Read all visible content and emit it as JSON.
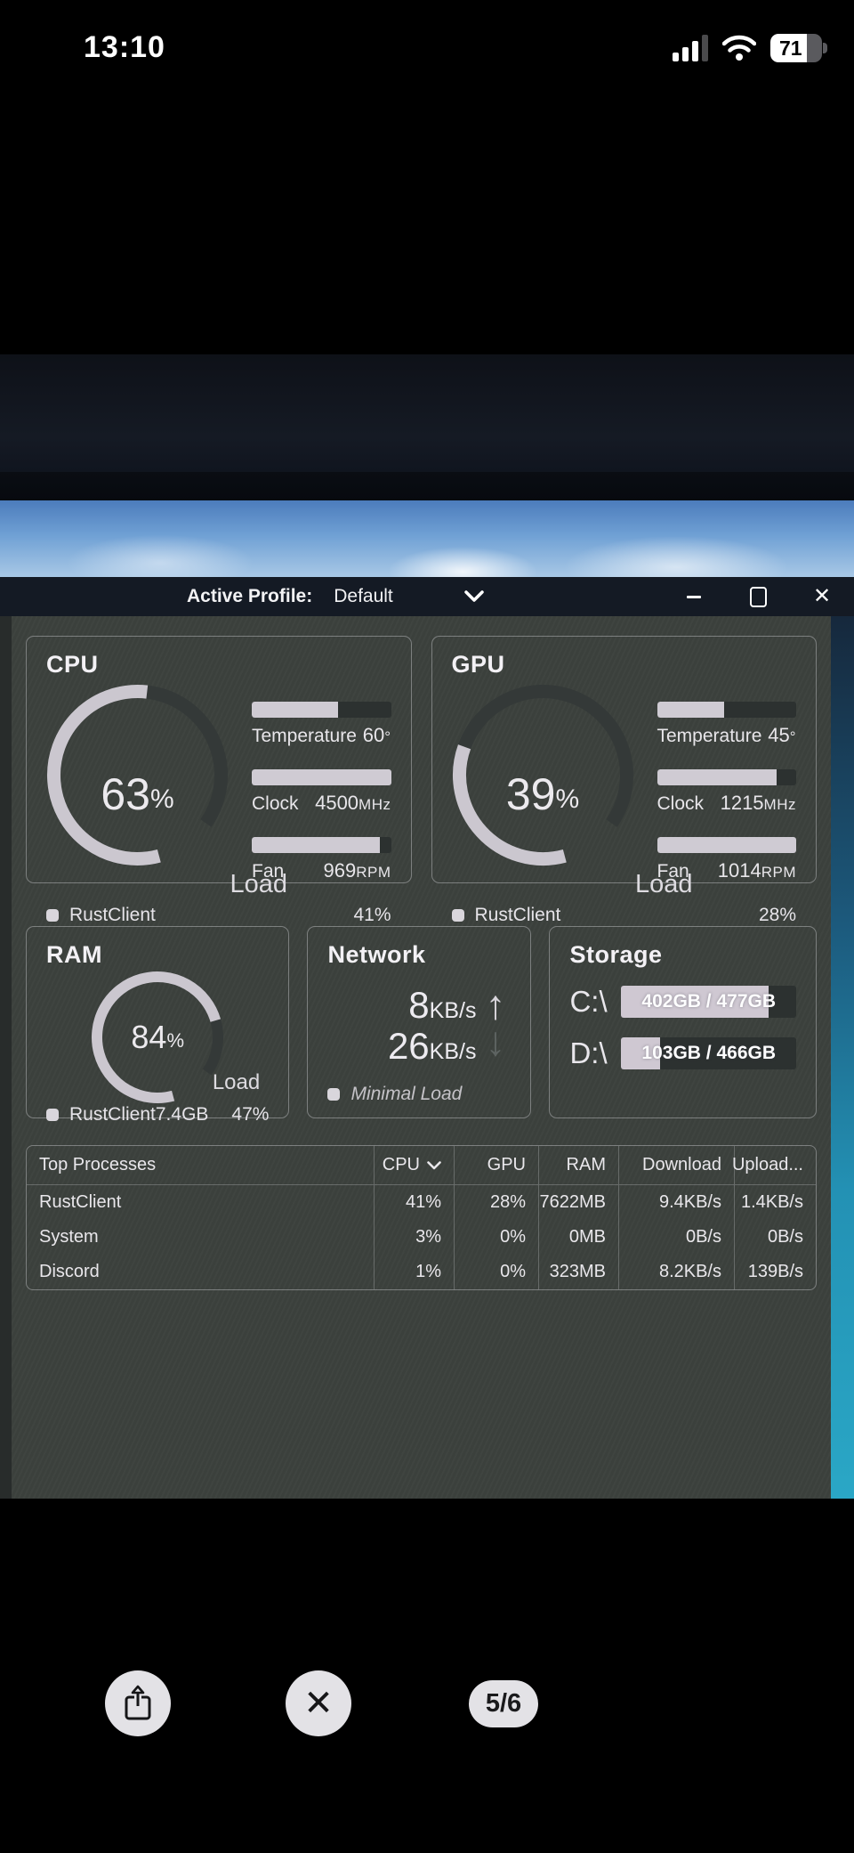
{
  "status_bar": {
    "time": "13:10",
    "battery_percent": "71",
    "battery_fill": 0.71
  },
  "window": {
    "titlebar": {
      "label": "Active Profile:",
      "value": "Default"
    },
    "controls": {
      "minimize": "minimize",
      "maximize": "maximize",
      "close": "close"
    },
    "panels": {
      "cpu": {
        "title": "CPU",
        "load_pct": 63,
        "load_num": "63",
        "load_unit": "%",
        "load_label": "Load",
        "bars": [
          {
            "label": "Temperature",
            "num": "60",
            "unit": "°",
            "fill": 0.62
          },
          {
            "label": "Clock",
            "num": "4500",
            "unit": "MHz",
            "fill": 1.0
          },
          {
            "label": "Fan",
            "num": "969",
            "unit": "RPM",
            "fill": 0.92
          }
        ],
        "footer": {
          "name": "RustClient",
          "pct": "41%"
        }
      },
      "gpu": {
        "title": "GPU",
        "load_pct": 39,
        "load_num": "39",
        "load_unit": "%",
        "load_label": "Load",
        "bars": [
          {
            "label": "Temperature",
            "num": "45",
            "unit": "°",
            "fill": 0.48
          },
          {
            "label": "Clock",
            "num": "1215",
            "unit": "MHz",
            "fill": 0.86
          },
          {
            "label": "Fan",
            "num": "1014",
            "unit": "RPM",
            "fill": 1.0
          }
        ],
        "footer": {
          "name": "RustClient",
          "pct": "28%"
        }
      },
      "ram": {
        "title": "RAM",
        "load_pct": 84,
        "load_num": "84",
        "load_unit": "%",
        "load_label": "Load",
        "footer": {
          "name": "RustClient",
          "mem": "7.4GB",
          "pct": "47%"
        }
      },
      "network": {
        "title": "Network",
        "up_num": "8",
        "up_unit": "KB/s",
        "down_num": "26",
        "down_unit": "KB/s",
        "footer": {
          "status": "Minimal Load"
        }
      },
      "storage": {
        "title": "Storage",
        "drives": [
          {
            "label": "C:\\",
            "text": "402GB / 477GB",
            "fill": 0.84
          },
          {
            "label": "D:\\",
            "text": "103GB / 466GB",
            "fill": 0.22
          }
        ]
      }
    },
    "process_table": {
      "headers": [
        "Top Processes",
        "CPU",
        "GPU",
        "RAM",
        "Download",
        "Upload..."
      ],
      "sorted_by": "CPU",
      "rows": [
        [
          "RustClient",
          "41%",
          "28%",
          "7622MB",
          "9.4KB/s",
          "1.4KB/s"
        ],
        [
          "System",
          "3%",
          "0%",
          "0MB",
          "0B/s",
          "0B/s"
        ],
        [
          "Discord",
          "1%",
          "0%",
          "323MB",
          "8.2KB/s",
          "139B/s"
        ]
      ]
    }
  },
  "photo_viewer": {
    "counter": "5/6"
  },
  "colors": {
    "gauge_fill": "#cbc7cf",
    "gauge_track": "#343938",
    "bar_fill": "#cfcbd3",
    "bar_track": "#2c3130",
    "titlebar_bg": "#141a24",
    "window_bg": "#3c413d",
    "wallpaper_teal": "#2aa7c6",
    "sky_blue": "#6fa0d4"
  }
}
